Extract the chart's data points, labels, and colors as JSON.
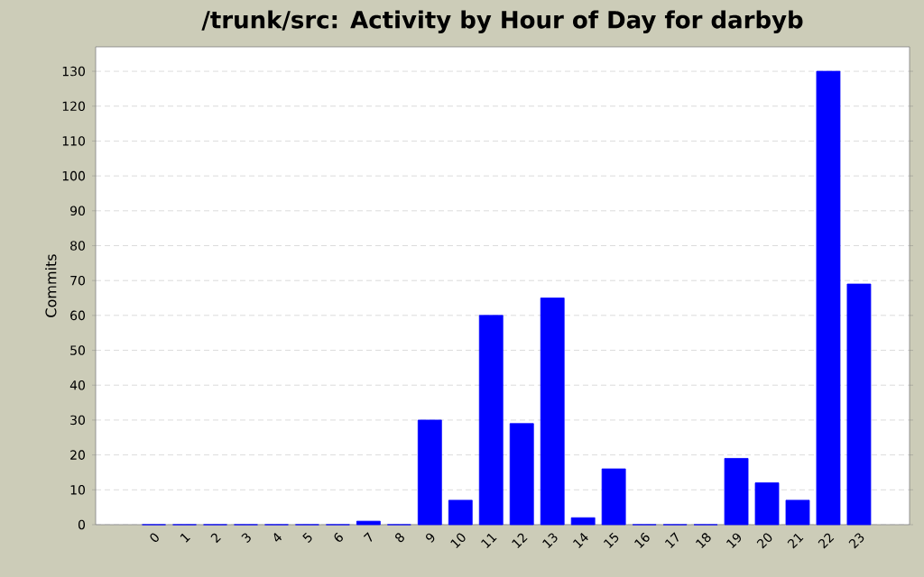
{
  "chart_data": {
    "type": "bar",
    "title": "/trunk/src: Activity by Hour of Day for darbyb",
    "ylabel": "Commits",
    "categories": [
      "0",
      "1",
      "2",
      "3",
      "4",
      "5",
      "6",
      "7",
      "8",
      "9",
      "10",
      "11",
      "12",
      "13",
      "14",
      "15",
      "16",
      "17",
      "18",
      "19",
      "20",
      "21",
      "22",
      "23"
    ],
    "values": [
      0,
      0,
      0,
      0,
      0,
      0,
      0,
      1,
      0,
      30,
      7,
      60,
      29,
      65,
      2,
      16,
      0,
      0,
      0,
      19,
      12,
      7,
      130,
      69
    ],
    "color": "#0000ff",
    "ylim": [
      0,
      137
    ],
    "yticks": [
      0,
      10,
      20,
      30,
      40,
      50,
      60,
      70,
      80,
      90,
      100,
      110,
      120,
      130
    ],
    "grid": "y"
  }
}
